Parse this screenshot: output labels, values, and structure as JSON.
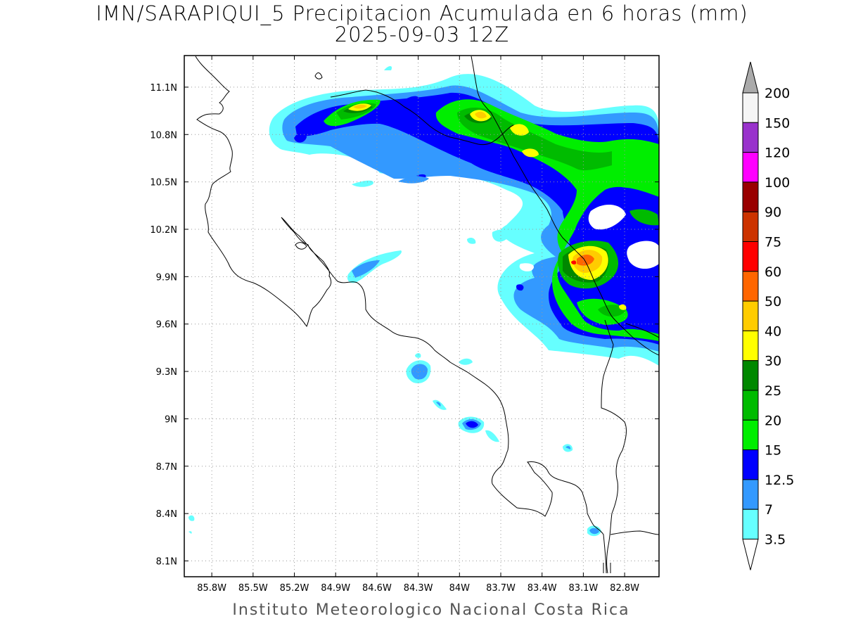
{
  "title_line1": "IMN/SARAPIQUI_5 Precipitacion Acumulada en 6 horas (mm)",
  "title_line2": "2025-09-03 12Z",
  "credit": "Instituto Meteorologico Nacional Costa Rica",
  "map": {
    "lon_range": [
      -86.0,
      -82.55
    ],
    "lat_range": [
      8.0,
      11.3
    ],
    "lat_ticks": [
      "11.1N",
      "10.8N",
      "10.5N",
      "10.2N",
      "9.9N",
      "9.6N",
      "9.3N",
      "9N",
      "8.7N",
      "8.4N",
      "8.1N"
    ],
    "lat_values": [
      11.1,
      10.8,
      10.5,
      10.2,
      9.9,
      9.6,
      9.3,
      9.0,
      8.7,
      8.4,
      8.1
    ],
    "lon_ticks": [
      "85.8W",
      "85.5W",
      "85.2W",
      "84.9W",
      "84.6W",
      "84.3W",
      "84W",
      "83.7W",
      "83.4W",
      "83.1W",
      "82.8W"
    ],
    "lon_values": [
      -85.8,
      -85.5,
      -85.2,
      -84.9,
      -84.6,
      -84.3,
      -84.0,
      -83.7,
      -83.4,
      -83.1,
      -82.8
    ],
    "grid": "dotted"
  },
  "colorbar": {
    "labels": [
      "200",
      "150",
      "120",
      "100",
      "90",
      "75",
      "60",
      "50",
      "40",
      "30",
      "25",
      "20",
      "15",
      "12.5",
      "7",
      "3.5"
    ],
    "colors": [
      "#f5f5f5",
      "#9932cc",
      "#ff00ff",
      "#990000",
      "#cc3300",
      "#ff0000",
      "#ff6600",
      "#ffcc00",
      "#ffff00",
      "#008800",
      "#00bb00",
      "#00ee00",
      "#0000ff",
      "#3399ff",
      "#66ffff"
    ],
    "over_color": "#aaaaaa",
    "under_color": "#ffffff"
  }
}
